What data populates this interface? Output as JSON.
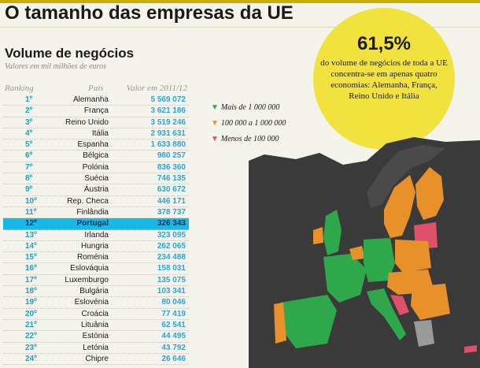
{
  "header": {
    "title": "O tamanho das empresas da UE",
    "subtitle": "Volume de negócios",
    "unit": "Valores em mil milhões de euros"
  },
  "table": {
    "col_ranking": "Ranking",
    "col_pais": "País",
    "col_valor": "Valor em 2011/12"
  },
  "callout": {
    "percent": "61,5%",
    "text": "do volume de negócios de toda a UE concentra-se em apenas quatro economias: Alemanha, França, Reino Unido e Itália"
  },
  "legend": [
    {
      "label": "Mais de 1 000 000",
      "color": "#2ea84a"
    },
    {
      "label": "100 000 a 1 000 000",
      "color": "#e8912a"
    },
    {
      "label": "Menos de 100 000",
      "color": "#e0506a"
    }
  ],
  "chart_data": {
    "type": "table",
    "title": "Volume de negócios",
    "highlight": "Portugal",
    "rows": [
      {
        "rank": "1º",
        "country": "Alemanha",
        "value": "5 569 072"
      },
      {
        "rank": "2º",
        "country": "França",
        "value": "3 621 186"
      },
      {
        "rank": "3º",
        "country": "Reino Unido",
        "value": "3 519 246"
      },
      {
        "rank": "4º",
        "country": "Itália",
        "value": "2 931 631"
      },
      {
        "rank": "5º",
        "country": "Espanha",
        "value": "1 633 880"
      },
      {
        "rank": "6º",
        "country": "Bélgica",
        "value": "980 257"
      },
      {
        "rank": "7º",
        "country": "Polónia",
        "value": "836 360"
      },
      {
        "rank": "8º",
        "country": "Suécia",
        "value": "746 135"
      },
      {
        "rank": "9º",
        "country": "Áustria",
        "value": "630 672"
      },
      {
        "rank": "10º",
        "country": "Rep. Checa",
        "value": "446 171"
      },
      {
        "rank": "11º",
        "country": "Finlândia",
        "value": "378 737"
      },
      {
        "rank": "12º",
        "country": "Portugal",
        "value": "326 343"
      },
      {
        "rank": "13º",
        "country": "Irlanda",
        "value": "323 095"
      },
      {
        "rank": "14º",
        "country": "Hungria",
        "value": "262 065"
      },
      {
        "rank": "15º",
        "country": "Roménia",
        "value": "234 488"
      },
      {
        "rank": "16º",
        "country": "Eslováquia",
        "value": "158 031"
      },
      {
        "rank": "17º",
        "country": "Luxemburgo",
        "value": "135 075"
      },
      {
        "rank": "18º",
        "country": "Bulgária",
        "value": "103 341"
      },
      {
        "rank": "19º",
        "country": "Eslovénia",
        "value": "80 046"
      },
      {
        "rank": "20º",
        "country": "Croácia",
        "value": "77 419"
      },
      {
        "rank": "21º",
        "country": "Lituânia",
        "value": "62 541"
      },
      {
        "rank": "22º",
        "country": "Estónia",
        "value": "44 495"
      },
      {
        "rank": "23º",
        "country": "Letónia",
        "value": "43 792"
      },
      {
        "rank": "24º",
        "country": "Chipre",
        "value": "26 646"
      }
    ]
  }
}
